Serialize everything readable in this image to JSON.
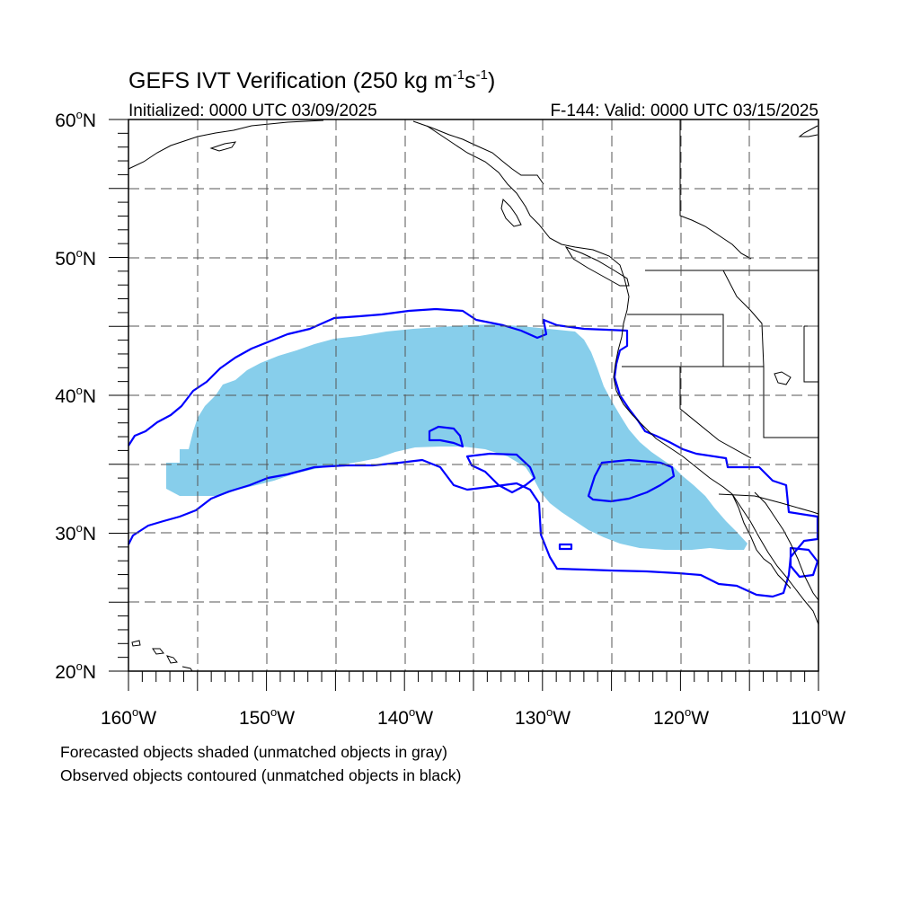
{
  "title": {
    "main": "GEFS IVT Verification (250 kg m",
    "exp1": "-1",
    "mid": "s",
    "exp2": "-1",
    "end": ")"
  },
  "subtitle_left": "Initialized: 0000 UTC 03/09/2025",
  "subtitle_right": "F-144: Valid: 0000 UTC 03/15/2025",
  "map": {
    "lon_range": [
      -160,
      -110
    ],
    "lat_range": [
      20,
      60
    ],
    "grid_step_deg": 5,
    "lon_ticks": [
      {
        "label": "160",
        "deg": "o",
        "hemi": "W"
      },
      {
        "label": "150",
        "deg": "o",
        "hemi": "W"
      },
      {
        "label": "140",
        "deg": "o",
        "hemi": "W"
      },
      {
        "label": "130",
        "deg": "o",
        "hemi": "W"
      },
      {
        "label": "120",
        "deg": "o",
        "hemi": "W"
      },
      {
        "label": "110",
        "deg": "o",
        "hemi": "W"
      }
    ],
    "lat_ticks": [
      {
        "label": "60",
        "deg": "o",
        "hemi": "N"
      },
      {
        "label": "50",
        "deg": "o",
        "hemi": "N"
      },
      {
        "label": "40",
        "deg": "o",
        "hemi": "N"
      },
      {
        "label": "30",
        "deg": "o",
        "hemi": "N"
      },
      {
        "label": "20",
        "deg": "o",
        "hemi": "N"
      }
    ],
    "colors": {
      "forecast_fill": "#87ceeb",
      "observed_contour": "#0000ff",
      "coastline": "#000000",
      "grid": "#555555"
    }
  },
  "legend": {
    "line1": "Forecasted objects shaded (unmatched objects in gray)",
    "line2": "Observed objects contoured (unmatched objects in black)"
  }
}
